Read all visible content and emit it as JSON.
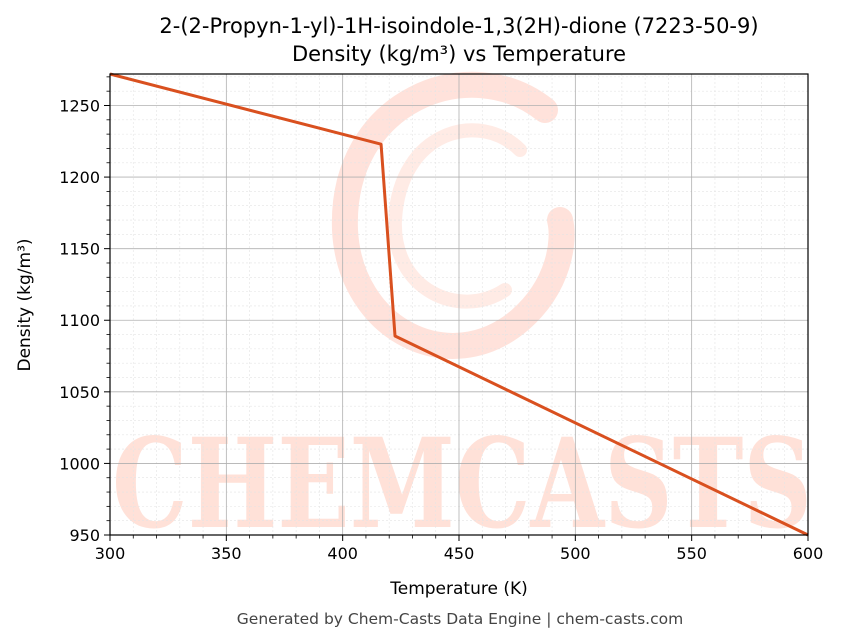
{
  "chart_data": {
    "type": "line",
    "title_line1": "2-(2-Propyn-1-yl)-1H-isoindole-1,3(2H)-dione (7223-50-9)",
    "title_line2": "Density (kg/m³) vs Temperature",
    "xlabel": "Temperature (K)",
    "ylabel": "Density (kg/m³)",
    "xlim": [
      300,
      600
    ],
    "ylim": [
      950,
      1272
    ],
    "x_ticks": [
      300,
      350,
      400,
      450,
      500,
      550,
      600
    ],
    "y_ticks": [
      950,
      1000,
      1050,
      1100,
      1150,
      1200,
      1250
    ],
    "grid": true,
    "series": [
      {
        "x": [
          300,
          416.5,
          422.5,
          600
        ],
        "y": [
          1272,
          1223,
          1089,
          950
        ],
        "color": "#d9501f"
      }
    ]
  },
  "watermark": {
    "text": "CHEMCASTS",
    "color": "#ffd7cc"
  },
  "footer": "Generated by Chem-Casts Data Engine | chem-casts.com"
}
